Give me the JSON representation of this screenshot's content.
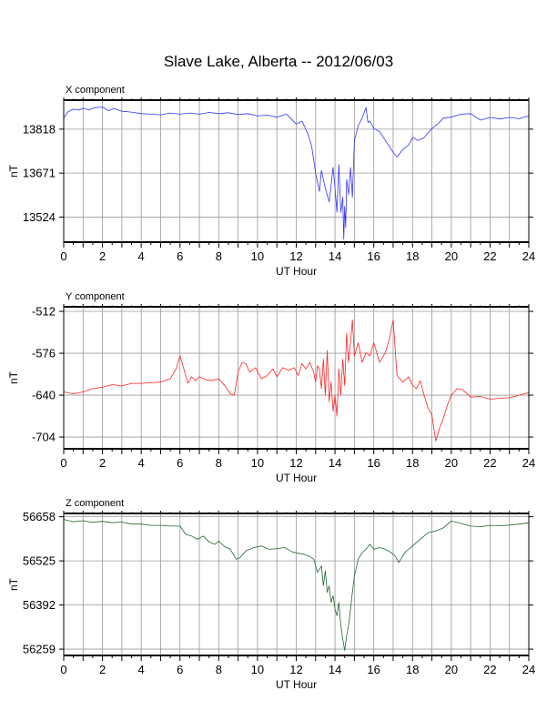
{
  "page": {
    "title": "Slave Lake, Alberta -- 2012/06/03"
  },
  "colors": {
    "x_series": "#3333ff",
    "y_series": "#ff2222",
    "z_series": "#226633",
    "grid": "#999999",
    "frame": "#000000"
  },
  "chart_data": [
    {
      "type": "line",
      "panel_label": "X component",
      "xlabel": "UT Hour",
      "ylabel": "nT",
      "xlim": [
        0,
        24
      ],
      "ylim": [
        13440,
        13915
      ],
      "x_ticks": [
        0,
        2,
        4,
        6,
        8,
        10,
        12,
        14,
        16,
        18,
        20,
        22,
        24
      ],
      "y_ticks": [
        13524,
        13671,
        13818
      ],
      "grid": true,
      "series": [
        {
          "x": [
            0.0,
            0.2,
            0.5,
            0.8,
            1.0,
            1.3,
            1.6,
            2.0,
            2.3,
            2.6,
            3.0,
            3.5,
            4.0,
            4.5,
            5.0,
            5.5,
            6.0,
            6.5,
            7.0,
            7.5,
            8.0,
            8.5,
            9.0,
            9.5,
            10.0,
            10.5,
            11.0,
            11.5,
            12.0,
            12.3,
            12.6,
            12.8,
            13.0,
            13.2,
            13.3,
            13.5,
            13.7,
            13.9,
            14.0,
            14.1,
            14.2,
            14.3,
            14.4,
            14.45,
            14.5,
            14.55,
            14.6,
            14.7,
            14.8,
            14.9,
            15.0,
            15.2,
            15.4,
            15.6,
            15.7,
            15.8,
            16.0,
            16.3,
            16.6,
            17.0,
            17.2,
            17.5,
            17.8,
            18.0,
            18.3,
            18.6,
            19.0,
            19.3,
            19.6,
            20.0,
            20.5,
            21.0,
            21.5,
            22.0,
            22.5,
            23.0,
            23.5,
            24.0
          ],
          "values": [
            13855,
            13875,
            13885,
            13882,
            13888,
            13882,
            13890,
            13892,
            13880,
            13887,
            13878,
            13875,
            13870,
            13868,
            13866,
            13872,
            13868,
            13872,
            13868,
            13874,
            13870,
            13873,
            13867,
            13870,
            13862,
            13865,
            13858,
            13868,
            13835,
            13845,
            13802,
            13760,
            13670,
            13610,
            13680,
            13620,
            13575,
            13690,
            13620,
            13540,
            13700,
            13540,
            13590,
            13450,
            13560,
            13490,
            13650,
            13600,
            13690,
            13590,
            13780,
            13830,
            13855,
            13890,
            13840,
            13845,
            13820,
            13810,
            13780,
            13740,
            13725,
            13750,
            13765,
            13790,
            13780,
            13790,
            13820,
            13835,
            13855,
            13858,
            13868,
            13870,
            13848,
            13857,
            13852,
            13857,
            13853,
            13862
          ]
        }
      ]
    },
    {
      "type": "line",
      "panel_label": "Y component",
      "xlabel": "UT Hour",
      "ylabel": "nT",
      "xlim": [
        0,
        24
      ],
      "ylim": [
        -722,
        -505
      ],
      "x_ticks": [
        0,
        2,
        4,
        6,
        8,
        10,
        12,
        14,
        16,
        18,
        20,
        22,
        24
      ],
      "y_ticks": [
        -512,
        -576,
        -640,
        -704
      ],
      "grid": true,
      "series": [
        {
          "x": [
            0.0,
            0.5,
            1.0,
            1.5,
            2.0,
            2.5,
            3.0,
            3.5,
            4.0,
            4.5,
            5.0,
            5.5,
            5.8,
            6.0,
            6.2,
            6.4,
            6.6,
            6.8,
            7.0,
            7.3,
            7.6,
            8.0,
            8.3,
            8.6,
            8.8,
            9.0,
            9.2,
            9.4,
            9.6,
            9.9,
            10.2,
            10.5,
            10.8,
            11.0,
            11.3,
            11.6,
            11.9,
            12.1,
            12.3,
            12.5,
            12.7,
            12.9,
            13.0,
            13.1,
            13.2,
            13.3,
            13.4,
            13.5,
            13.6,
            13.7,
            13.8,
            13.9,
            14.0,
            14.1,
            14.2,
            14.3,
            14.4,
            14.5,
            14.6,
            14.7,
            14.8,
            14.9,
            15.0,
            15.2,
            15.4,
            15.6,
            15.8,
            16.0,
            16.3,
            16.6,
            16.8,
            17.0,
            17.2,
            17.5,
            17.8,
            18.0,
            18.2,
            18.4,
            18.6,
            18.8,
            19.0,
            19.2,
            19.4,
            19.6,
            19.8,
            20.0,
            20.3,
            20.6,
            21.0,
            21.5,
            22.0,
            22.5,
            23.0,
            23.5,
            24.0
          ],
          "values": [
            -635,
            -638,
            -635,
            -630,
            -628,
            -624,
            -626,
            -622,
            -622,
            -621,
            -620,
            -615,
            -600,
            -580,
            -600,
            -622,
            -612,
            -618,
            -612,
            -616,
            -618,
            -615,
            -625,
            -638,
            -640,
            -605,
            -590,
            -592,
            -605,
            -598,
            -615,
            -610,
            -600,
            -612,
            -598,
            -602,
            -598,
            -610,
            -592,
            -600,
            -590,
            -605,
            -620,
            -595,
            -600,
            -630,
            -585,
            -640,
            -572,
            -650,
            -620,
            -665,
            -640,
            -672,
            -600,
            -640,
            -585,
            -625,
            -545,
            -590,
            -560,
            -525,
            -580,
            -560,
            -590,
            -575,
            -580,
            -560,
            -590,
            -575,
            -555,
            -525,
            -610,
            -620,
            -612,
            -625,
            -630,
            -618,
            -640,
            -660,
            -670,
            -710,
            -690,
            -675,
            -655,
            -640,
            -630,
            -632,
            -643,
            -642,
            -646,
            -645,
            -644,
            -640,
            -636
          ]
        }
      ]
    },
    {
      "type": "line",
      "panel_label": "Z component",
      "xlabel": "UT Hour",
      "ylabel": "nT",
      "xlim": [
        0,
        24
      ],
      "ylim": [
        56240,
        56668
      ],
      "x_ticks": [
        0,
        2,
        4,
        6,
        8,
        10,
        12,
        14,
        16,
        18,
        20,
        22,
        24
      ],
      "y_ticks": [
        56259,
        56392,
        56525,
        56658
      ],
      "grid": true,
      "series": [
        {
          "x": [
            0.0,
            0.5,
            1.0,
            1.5,
            2.0,
            2.5,
            3.0,
            3.5,
            4.0,
            4.5,
            5.0,
            5.5,
            6.0,
            6.3,
            6.6,
            6.9,
            7.2,
            7.5,
            7.8,
            8.0,
            8.3,
            8.6,
            8.9,
            9.1,
            9.4,
            9.8,
            10.2,
            10.6,
            11.0,
            11.4,
            11.8,
            12.1,
            12.4,
            12.7,
            12.9,
            13.1,
            13.3,
            13.4,
            13.5,
            13.6,
            13.7,
            13.8,
            13.9,
            14.0,
            14.1,
            14.2,
            14.3,
            14.4,
            14.5,
            14.6,
            14.7,
            14.8,
            14.9,
            15.0,
            15.2,
            15.4,
            15.6,
            15.8,
            16.0,
            16.3,
            16.6,
            16.9,
            17.1,
            17.3,
            17.6,
            18.0,
            18.4,
            18.8,
            19.2,
            19.6,
            20.0,
            20.5,
            21.0,
            21.5,
            22.0,
            22.5,
            23.0,
            23.5,
            24.0
          ],
          "values": [
            56650,
            56643,
            56646,
            56641,
            56644,
            56640,
            56642,
            56636,
            56636,
            56632,
            56632,
            56630,
            56630,
            56605,
            56600,
            56590,
            56600,
            56582,
            56575,
            56585,
            56568,
            56560,
            56530,
            56535,
            56555,
            56565,
            56570,
            56560,
            56562,
            56565,
            56552,
            56548,
            56545,
            56538,
            56530,
            56490,
            56510,
            56450,
            56495,
            56430,
            56450,
            56400,
            56420,
            56380,
            56360,
            56400,
            56330,
            56290,
            56255,
            56300,
            56330,
            56380,
            56430,
            56480,
            56530,
            56550,
            56560,
            56575,
            56560,
            56565,
            56560,
            56550,
            56540,
            56520,
            56550,
            56570,
            56590,
            56610,
            56615,
            56625,
            56645,
            56638,
            56630,
            56628,
            56632,
            56631,
            56633,
            56636,
            56640
          ]
        }
      ]
    }
  ]
}
